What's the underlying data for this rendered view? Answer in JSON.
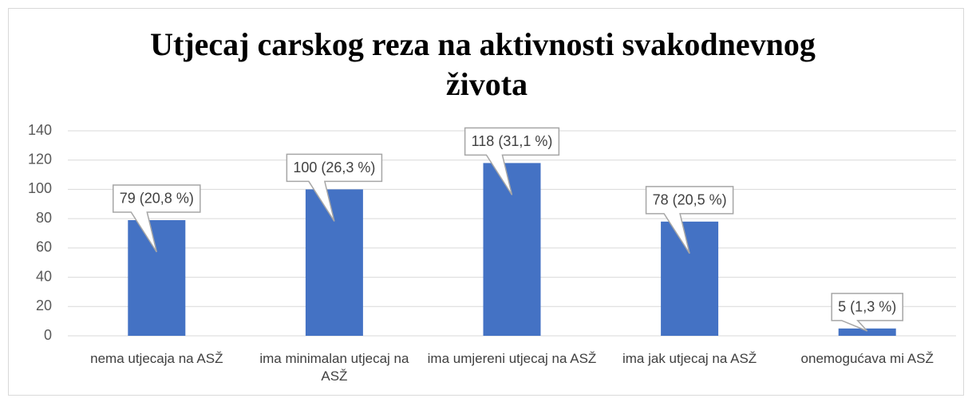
{
  "chart_data": {
    "type": "bar",
    "title": "Utjecaj carskog reza na aktivnosti svakodnevnog života",
    "categories": [
      "nema utjecaja na ASŽ",
      "ima minimalan utjecaj na ASŽ",
      "ima umjereni utjecaj na ASŽ",
      "ima jak utjecaj na ASŽ",
      "onemogućava mi ASŽ"
    ],
    "values": [
      79,
      100,
      118,
      78,
      5
    ],
    "value_labels": [
      "79 (20,8 %)",
      "100 (26,3 %)",
      "118 (31,1 %)",
      "78 (20,5 %)",
      "5 (1,3 %)"
    ],
    "color": "#4472c4",
    "ylim": [
      0,
      140
    ],
    "yticks": [
      0,
      20,
      40,
      60,
      80,
      100,
      120,
      140
    ],
    "grid": true
  }
}
